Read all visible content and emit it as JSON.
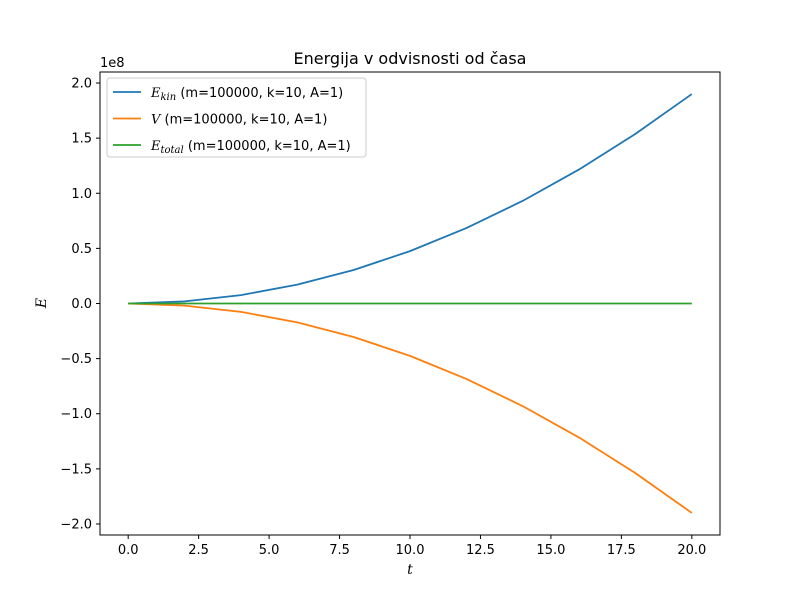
{
  "chart_data": {
    "type": "line",
    "title": "Energija v odvisnosti od časa",
    "xlabel": "t",
    "ylabel": "E",
    "y_offset_label": "1e8",
    "xlim": [
      -1,
      21
    ],
    "ylim": [
      -2.1,
      2.1
    ],
    "x_ticks": [
      0.0,
      2.5,
      5.0,
      7.5,
      10.0,
      12.5,
      15.0,
      17.5,
      20.0
    ],
    "x_tick_labels": [
      "0.0",
      "2.5",
      "5.0",
      "7.5",
      "10.0",
      "12.5",
      "15.0",
      "17.5",
      "20.0"
    ],
    "y_ticks": [
      2.0,
      1.5,
      1.0,
      0.5,
      0.0,
      -0.5,
      -1.0,
      -1.5,
      -2.0
    ],
    "y_tick_labels": [
      "2.0",
      "1.5",
      "1.0",
      "0.5",
      "0.0",
      "−0.5",
      "−1.0",
      "−1.5",
      "−2.0"
    ],
    "grid": false,
    "legend_position": "top-left",
    "x": [
      0,
      2,
      4,
      6,
      8,
      10,
      12,
      14,
      16,
      18,
      20
    ],
    "series": [
      {
        "name": "E_kin (m=100000, k=10, A=1)",
        "symbol": "E",
        "subscript": "kin",
        "suffix": " (m=100000, k=10, A=1)",
        "color": "#1f77b4",
        "values": [
          0.0,
          0.019,
          0.076,
          0.171,
          0.304,
          0.475,
          0.684,
          0.931,
          1.216,
          1.539,
          1.9
        ]
      },
      {
        "name": "V (m=100000, k=10, A=1)",
        "symbol": "V",
        "subscript": "",
        "suffix": " (m=100000, k=10, A=1)",
        "color": "#ff7f0e",
        "values": [
          0.0,
          -0.019,
          -0.076,
          -0.171,
          -0.304,
          -0.475,
          -0.684,
          -0.931,
          -1.216,
          -1.539,
          -1.9
        ]
      },
      {
        "name": "E_total (m=100000, k=10, A=1)",
        "symbol": "E",
        "subscript": "total",
        "suffix": " (m=100000, k=10, A=1)",
        "color": "#2ca02c",
        "values": [
          0,
          0,
          0,
          0,
          0,
          0,
          0,
          0,
          0,
          0,
          0
        ]
      }
    ]
  }
}
